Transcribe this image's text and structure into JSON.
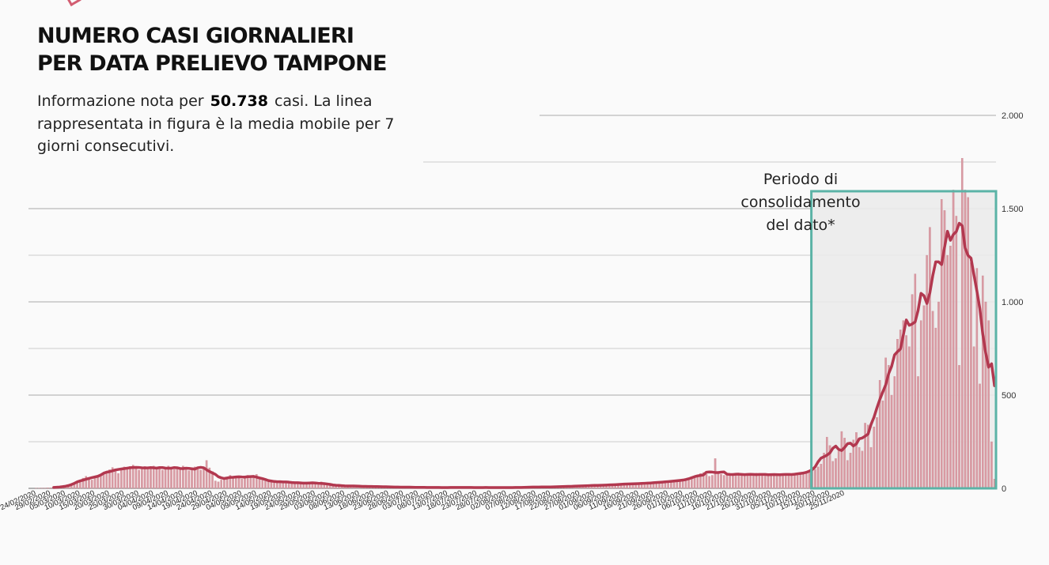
{
  "title_line1": "NUMERO CASI GIORNALIERI",
  "title_line2": "PER DATA PRELIEVO TAMPONE",
  "subtitle_pre": "Informazione nota per",
  "subtitle_number": "50.738",
  "subtitle_post": "casi. La linea rappresentata in figura è la media mobile per 7 giorni consecutivi.",
  "annotation": {
    "line1": "Periodo di",
    "line2": "consolidamento",
    "line3": "del dato*"
  },
  "colors": {
    "bar": "#d99aa3",
    "bar_edge": "#c98890",
    "line": "#b2384f",
    "box": "#5bb3a6",
    "box_fill": "#ebebeb",
    "grid": "#cccccc",
    "grid_major": "#a9a9a9"
  },
  "chart_data": {
    "type": "bar",
    "overlay": "line (7-day moving average)",
    "x_start_date": "24/02/2020",
    "x_end_date": "27/11/2020",
    "ylim": [
      0,
      2000
    ],
    "y_ticks": [
      0,
      500,
      1000,
      1500,
      2000
    ],
    "y_tick_labels": [
      "0",
      "500",
      "1.000",
      "1.500",
      "2.000"
    ],
    "x_tick_labels": [
      "24/02/2020",
      "29/02/2020",
      "05/03/2020",
      "10/03/2020",
      "15/03/2020",
      "20/03/2020",
      "25/03/2020",
      "30/03/2020",
      "04/04/2020",
      "09/04/2020",
      "14/04/2020",
      "19/04/2020",
      "24/04/2020",
      "29/04/2020",
      "04/05/2020",
      "09/05/2020",
      "14/05/2020",
      "19/05/2020",
      "24/05/2020",
      "29/05/2020",
      "03/06/2020",
      "08/06/2020",
      "13/06/2020",
      "18/06/2020",
      "23/06/2020",
      "28/06/2020",
      "03/07/2020",
      "08/07/2020",
      "13/07/2020",
      "18/07/2020",
      "23/07/2020",
      "28/07/2020",
      "02/08/2020",
      "07/08/2020",
      "12/08/2020",
      "17/08/2020",
      "22/08/2020",
      "27/08/2020",
      "01/09/2020",
      "06/09/2020",
      "11/09/2020",
      "16/09/2020",
      "21/09/2020",
      "26/09/2020",
      "01/10/2020",
      "06/10/2020",
      "11/10/2020",
      "16/10/2020",
      "21/10/2020",
      "26/10/2020",
      "31/10/2020",
      "05/11/2020",
      "10/11/2020",
      "15/11/2020",
      "20/11/2020",
      "25/11/2020"
    ],
    "grid": true,
    "highlight_period": {
      "from": "15/11/2020",
      "to": "27/11/2020"
    },
    "daily_cases": [
      0,
      1,
      1,
      2,
      2,
      3,
      3,
      5,
      6,
      6,
      8,
      10,
      12,
      16,
      22,
      30,
      42,
      55,
      65,
      50,
      45,
      55,
      62,
      70,
      80,
      90,
      100,
      112,
      95,
      80,
      100,
      115,
      108,
      118,
      125,
      112,
      98,
      108,
      118,
      102,
      110,
      120,
      112,
      110,
      98,
      108,
      120,
      110,
      102,
      108,
      112,
      120,
      100,
      95,
      105,
      115,
      102,
      98,
      108,
      150,
      110,
      90,
      40,
      35,
      45,
      55,
      60,
      70,
      65,
      60,
      55,
      50,
      65,
      70,
      60,
      62,
      75,
      60,
      55,
      40,
      38,
      35,
      30,
      35,
      42,
      38,
      32,
      35,
      30,
      30,
      25,
      28,
      32,
      30,
      28,
      25,
      28,
      30,
      35,
      25,
      20,
      22,
      18,
      15,
      14,
      12,
      14,
      15,
      12,
      10,
      12,
      14,
      12,
      10,
      10,
      8,
      8,
      10,
      12,
      10,
      8,
      7,
      6,
      6,
      7,
      8,
      7,
      6,
      5,
      6,
      6,
      6,
      5,
      5,
      5,
      5,
      5,
      4,
      4,
      5,
      5,
      4,
      4,
      4,
      5,
      5,
      6,
      5,
      4,
      4,
      4,
      5,
      5,
      4,
      4,
      4,
      5,
      5,
      4,
      3,
      4,
      4,
      5,
      5,
      4,
      4,
      5,
      5,
      6,
      6,
      7,
      8,
      8,
      7,
      6,
      7,
      8,
      8,
      8,
      9,
      9,
      10,
      10,
      11,
      12,
      12,
      12,
      14,
      14,
      14,
      14,
      16,
      18,
      18,
      16,
      16,
      18,
      18,
      20,
      22,
      22,
      22,
      24,
      24,
      24,
      25,
      26,
      26,
      26,
      28,
      30,
      30,
      30,
      32,
      34,
      34,
      36,
      38,
      40,
      40,
      42,
      45,
      45,
      48,
      50,
      60,
      70,
      80,
      85,
      75,
      65,
      70,
      160,
      80,
      75,
      70,
      72,
      80,
      80,
      75,
      70,
      72,
      80,
      75,
      70,
      72,
      82,
      75,
      70,
      72,
      80,
      72,
      70,
      72,
      80,
      72,
      70,
      75,
      80,
      75,
      70,
      78,
      82,
      85,
      90,
      95,
      102,
      115,
      130,
      190,
      275,
      230,
      145,
      160,
      200,
      305,
      270,
      150,
      190,
      260,
      300,
      220,
      200,
      350,
      340,
      220,
      330,
      380,
      580,
      470,
      700,
      660,
      500,
      600,
      800,
      850,
      900,
      820,
      760,
      1040,
      1150,
      600,
      900,
      980,
      1250,
      1400,
      950,
      860,
      1000,
      1550,
      1490,
      1250,
      1300,
      1600,
      1460,
      660,
      1770,
      1600,
      1560,
      1210,
      760,
      1180,
      560,
      1140,
      1000,
      900,
      250,
      50
    ]
  }
}
